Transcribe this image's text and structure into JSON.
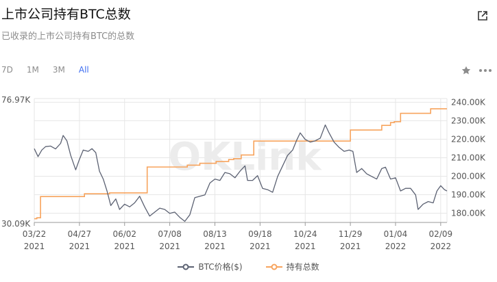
{
  "header": {
    "title": "上市公司持有BTC总数",
    "subtitle": "已收录的上市公司持有BTC的总数",
    "share_icon": "external-link-icon"
  },
  "ranges": [
    {
      "label": "7D",
      "active": false
    },
    {
      "label": "1M",
      "active": false
    },
    {
      "label": "3M",
      "active": false
    },
    {
      "label": "All",
      "active": true
    }
  ],
  "toolbar": {
    "favorite_icon": "star-icon",
    "more_icon": "more-dots-icon"
  },
  "watermark": "OKLink",
  "colors": {
    "btc_price": "#5b6172",
    "holdings": "#f7a35c",
    "accent": "#3d6df0",
    "grid": "#e6e6e6"
  },
  "chart_data": {
    "type": "line",
    "x_labels": [
      [
        "03/22",
        "2021"
      ],
      [
        "04/27",
        "2021"
      ],
      [
        "06/02",
        "2021"
      ],
      [
        "07/08",
        "2021"
      ],
      [
        "08/13",
        "2021"
      ],
      [
        "09/18",
        "2021"
      ],
      [
        "10/24",
        "2021"
      ],
      [
        "11/29",
        "2021"
      ],
      [
        "01/04",
        "2022"
      ],
      [
        "02/09",
        "2022"
      ]
    ],
    "x_dates": [
      "2021-03-22",
      "2021-04-27",
      "2021-06-02",
      "2021-07-08",
      "2021-08-13",
      "2021-09-18",
      "2021-10-24",
      "2021-11-29",
      "2022-01-04",
      "2022-02-09"
    ],
    "x_range": [
      "2021-03-22",
      "2022-02-14"
    ],
    "left_axis": {
      "labels": [
        "76.97K",
        "30.09K"
      ],
      "range": [
        30090,
        76970
      ]
    },
    "right_axis": {
      "ticks": [
        180000,
        190000,
        200000,
        210000,
        220000,
        230000,
        240000
      ],
      "tick_labels": [
        "180.00K",
        "190.00K",
        "200.00K",
        "210.00K",
        "220.00K",
        "230.00K",
        "240.00K"
      ],
      "range": [
        175000,
        242000
      ]
    },
    "grid": true,
    "legend_position": "bottom-center",
    "series": [
      {
        "name": "BTC价格($)",
        "axis": "left",
        "x": [
          "2021-03-22",
          "2021-03-25",
          "2021-03-28",
          "2021-03-31",
          "2021-04-04",
          "2021-04-08",
          "2021-04-12",
          "2021-04-14",
          "2021-04-17",
          "2021-04-20",
          "2021-04-24",
          "2021-04-27",
          "2021-04-30",
          "2021-05-04",
          "2021-05-07",
          "2021-05-10",
          "2021-05-13",
          "2021-05-16",
          "2021-05-19",
          "2021-05-22",
          "2021-05-26",
          "2021-05-29",
          "2021-06-02",
          "2021-06-06",
          "2021-06-10",
          "2021-06-14",
          "2021-06-18",
          "2021-06-22",
          "2021-06-26",
          "2021-06-30",
          "2021-07-04",
          "2021-07-08",
          "2021-07-12",
          "2021-07-16",
          "2021-07-20",
          "2021-07-24",
          "2021-07-28",
          "2021-08-01",
          "2021-08-05",
          "2021-08-09",
          "2021-08-13",
          "2021-08-17",
          "2021-08-21",
          "2021-08-25",
          "2021-08-29",
          "2021-09-02",
          "2021-09-06",
          "2021-09-08",
          "2021-09-12",
          "2021-09-16",
          "2021-09-20",
          "2021-09-24",
          "2021-09-28",
          "2021-10-02",
          "2021-10-06",
          "2021-10-10",
          "2021-10-14",
          "2021-10-17",
          "2021-10-20",
          "2021-10-24",
          "2021-10-28",
          "2021-11-01",
          "2021-11-05",
          "2021-11-09",
          "2021-11-12",
          "2021-11-16",
          "2021-11-20",
          "2021-11-24",
          "2021-11-28",
          "2021-12-01",
          "2021-12-04",
          "2021-12-08",
          "2021-12-12",
          "2021-12-16",
          "2021-12-20",
          "2021-12-24",
          "2021-12-27",
          "2021-12-31",
          "2022-01-04",
          "2022-01-08",
          "2022-01-12",
          "2022-01-16",
          "2022-01-20",
          "2022-01-22",
          "2022-01-26",
          "2022-01-30",
          "2022-02-03",
          "2022-02-06",
          "2022-02-09",
          "2022-02-12",
          "2022-02-14"
        ],
        "values": [
          58000,
          55000,
          57500,
          58800,
          59000,
          57900,
          60000,
          63000,
          61000,
          55500,
          50000,
          54000,
          57500,
          57000,
          58000,
          56500,
          49500,
          46500,
          42000,
          36500,
          39000,
          35000,
          37000,
          36000,
          37500,
          40000,
          36000,
          32500,
          34000,
          35500,
          35000,
          33500,
          34000,
          32000,
          30500,
          33000,
          39500,
          40000,
          40500,
          45000,
          46500,
          46000,
          49000,
          48500,
          47000,
          49500,
          51500,
          46000,
          46000,
          47800,
          43000,
          42500,
          41500,
          47500,
          51500,
          55500,
          57500,
          61000,
          64000,
          61500,
          60500,
          61000,
          62000,
          67000,
          64000,
          60500,
          58500,
          57000,
          57500,
          57000,
          49000,
          50500,
          48500,
          47500,
          46500,
          50500,
          51000,
          46500,
          47000,
          42000,
          43000,
          43000,
          40500,
          35000,
          37000,
          38000,
          37500,
          42000,
          44000,
          42500,
          42000
        ]
      },
      {
        "name": "持有总数",
        "axis": "right",
        "x": [
          "2021-03-22",
          "2021-03-24",
          "2021-03-27",
          "2021-05-01",
          "2021-05-21",
          "2021-06-18",
          "2021-06-20",
          "2021-07-22",
          "2021-08-01",
          "2021-08-14",
          "2021-08-24",
          "2021-08-28",
          "2021-09-03",
          "2021-09-13",
          "2021-11-28",
          "2021-11-29",
          "2021-12-24",
          "2021-12-31",
          "2022-01-03",
          "2022-01-08",
          "2022-02-01",
          "2022-02-14"
        ],
        "values": [
          177000,
          177500,
          189000,
          190500,
          191000,
          191000,
          205000,
          206000,
          207000,
          208000,
          209000,
          209500,
          211500,
          219000,
          219000,
          225000,
          227500,
          229000,
          229500,
          234000,
          236500,
          236500
        ]
      }
    ]
  }
}
